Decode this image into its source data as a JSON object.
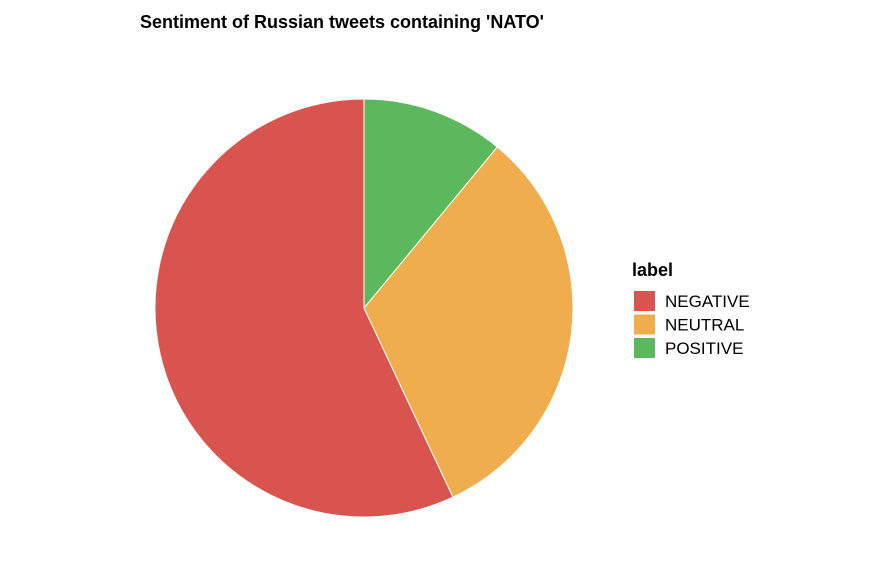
{
  "chart_data": {
    "type": "pie",
    "title": "Sentiment of Russian tweets containing 'NATO'",
    "legend": {
      "title": "label",
      "position": "right"
    },
    "slices": [
      {
        "label": "NEGATIVE",
        "value": 57,
        "color": "#D9534F"
      },
      {
        "label": "NEUTRAL",
        "value": 32,
        "color": "#F0AD4E"
      },
      {
        "label": "POSITIVE",
        "value": 11,
        "color": "#5CB85C"
      }
    ]
  }
}
